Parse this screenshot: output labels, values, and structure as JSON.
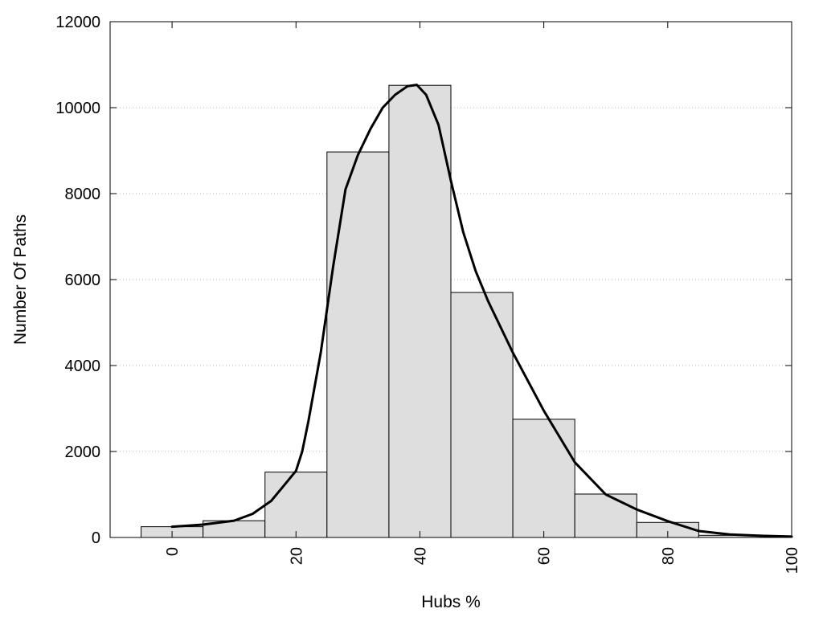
{
  "chart_data": {
    "type": "bar",
    "xlabel": "Hubs %",
    "ylabel": "Number Of Paths",
    "xlim": [
      -10,
      100
    ],
    "ylim": [
      0,
      12000
    ],
    "grid": "y-dotted",
    "xticks": [
      0,
      20,
      40,
      60,
      80,
      100
    ],
    "yticks": [
      0,
      2000,
      4000,
      6000,
      8000,
      10000,
      12000
    ],
    "bin_width": 10,
    "bins": [
      {
        "center": 0,
        "value": 250
      },
      {
        "center": 10,
        "value": 390
      },
      {
        "center": 20,
        "value": 1520
      },
      {
        "center": 30,
        "value": 8970
      },
      {
        "center": 40,
        "value": 10520
      },
      {
        "center": 50,
        "value": 5700
      },
      {
        "center": 60,
        "value": 2750
      },
      {
        "center": 70,
        "value": 1010
      },
      {
        "center": 80,
        "value": 350
      },
      {
        "center": 90,
        "value": 50
      }
    ],
    "curve": [
      [
        0,
        250
      ],
      [
        5,
        300
      ],
      [
        10,
        390
      ],
      [
        13,
        550
      ],
      [
        16,
        850
      ],
      [
        18,
        1200
      ],
      [
        20,
        1550
      ],
      [
        21,
        2000
      ],
      [
        22,
        2700
      ],
      [
        24,
        4300
      ],
      [
        26,
        6300
      ],
      [
        28,
        8100
      ],
      [
        30,
        8900
      ],
      [
        32,
        9500
      ],
      [
        34,
        10000
      ],
      [
        36,
        10300
      ],
      [
        38,
        10500
      ],
      [
        39.5,
        10530
      ],
      [
        41,
        10300
      ],
      [
        43,
        9600
      ],
      [
        45,
        8300
      ],
      [
        47,
        7100
      ],
      [
        49,
        6200
      ],
      [
        51,
        5500
      ],
      [
        55,
        4300
      ],
      [
        60,
        2950
      ],
      [
        65,
        1750
      ],
      [
        70,
        1000
      ],
      [
        75,
        650
      ],
      [
        80,
        380
      ],
      [
        85,
        150
      ],
      [
        90,
        70
      ],
      [
        95,
        40
      ],
      [
        100,
        20
      ]
    ],
    "colors": {
      "bar_fill": "#dedede",
      "bar_stroke": "#000000",
      "curve": "#000000",
      "grid": "#bbbbbb"
    }
  }
}
